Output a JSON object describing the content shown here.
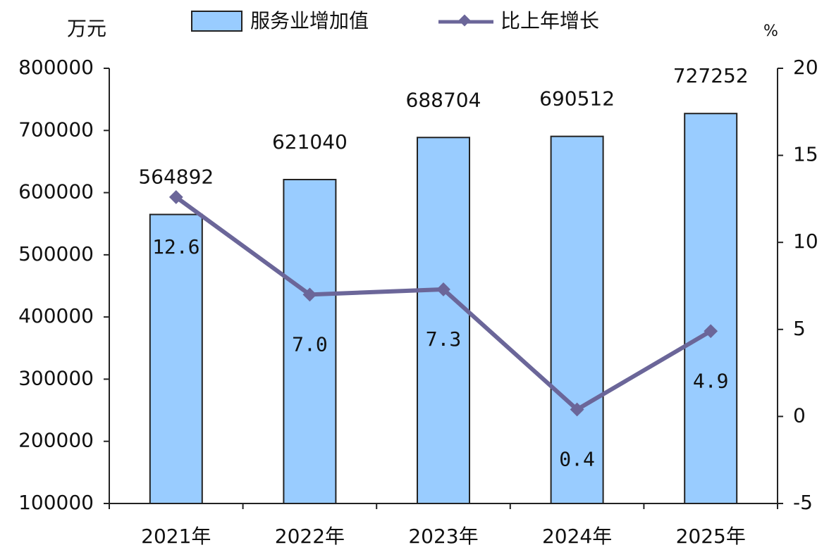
{
  "chart_data": {
    "type": "bar",
    "y_label": "万元",
    "y2_label": "%",
    "categories": [
      "2021年",
      "2022年",
      "2023年",
      "2024年",
      "2025年"
    ],
    "series": [
      {
        "name": "服务业增加值",
        "color": "#99ccff",
        "values": [
          564892,
          621040,
          688704,
          690512,
          727252
        ]
      },
      {
        "name": "比上年增长",
        "color": "#6b6699",
        "type": "line",
        "axis": "y2",
        "values": [
          12.6,
          7.0,
          7.3,
          0.4,
          4.9
        ],
        "value_labels": [
          "12.6",
          "7.0",
          "7.3",
          "0.4",
          "4.9"
        ]
      }
    ],
    "ylim": [
      100000,
      800000
    ],
    "yticks": [
      100000,
      200000,
      300000,
      400000,
      500000,
      600000,
      700000,
      800000
    ],
    "y2lim": [
      -5,
      20
    ],
    "y2ticks": [
      -5,
      0,
      5,
      10,
      15,
      20
    ],
    "grid": false
  }
}
